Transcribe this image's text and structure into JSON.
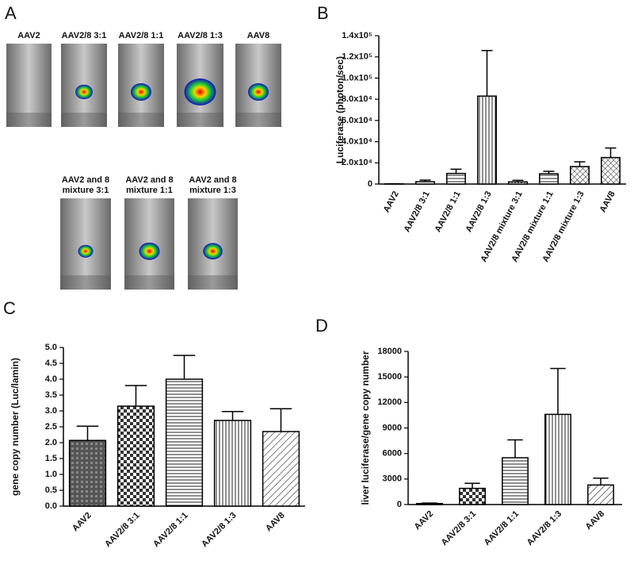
{
  "panel_labels": [
    "A",
    "B",
    "C",
    "D"
  ],
  "imaging": {
    "labels": [
      [
        "AAV2"
      ],
      [
        "AAV2/8 3:1"
      ],
      [
        "AAV2/8 1:1"
      ],
      [
        "AAV2/8 1:3"
      ],
      [
        "AAV8"
      ],
      [
        "AAV2 and 8",
        "mixture 3:1"
      ],
      [
        "AAV2 and 8",
        "mixture 1:1"
      ],
      [
        "AAV2 and 8",
        "mixture 1:3"
      ]
    ]
  },
  "chart_data": [
    {
      "type": "bar",
      "y_label": "Luciferase (photon/sec)",
      "categories": [
        "AAV2",
        "AAV2/8 3:1",
        "AAV2/8 1:1",
        "AAV2/8 1:3",
        "AAV2/8 mixture 3:1",
        "AAV2/8 mixture 1:1",
        "AAV2/8 mixture 1:3",
        "AAV8"
      ],
      "values": [
        200,
        2200,
        10000,
        83000,
        2000,
        9700,
        16500,
        25000
      ],
      "errors": [
        100,
        1500,
        4000,
        43000,
        1500,
        2300,
        4500,
        9000
      ],
      "color": "#000000",
      "ylim": [
        0,
        140000
      ],
      "yticks": [
        0,
        {
          "value": 20000,
          "label": "2.0x10⁴"
        },
        {
          "value": 40000,
          "label": "4.0x10⁴"
        },
        {
          "value": 60000,
          "label": "6.0x10⁴"
        },
        {
          "value": 80000,
          "label": "8.0x10⁴"
        },
        {
          "value": 100000,
          "label": "1.0x10⁵"
        },
        {
          "value": 120000,
          "label": "1.2x10⁵"
        },
        {
          "value": 140000,
          "label": "1.4x10⁵"
        }
      ]
    },
    {
      "type": "bar",
      "y_label": "gene copy number (Luc/lamin)",
      "categories": [
        "AAV2",
        "AAV2/8 3:1",
        "AAV2/8 1:1",
        "AAV2/8 1:3",
        "AAV8"
      ],
      "values": [
        2.07,
        3.15,
        4.0,
        2.7,
        2.35
      ],
      "errors": [
        0.45,
        0.65,
        0.75,
        0.28,
        0.72
      ],
      "color": "#000000",
      "ylim": [
        0,
        5
      ],
      "yticks": [
        {
          "value": 0,
          "label": "0.0"
        },
        0.5,
        {
          "value": 1,
          "label": "1.0"
        },
        1.5,
        {
          "value": 2,
          "label": "2.0"
        },
        2.5,
        {
          "value": 3,
          "label": "3.0"
        },
        3.5,
        {
          "value": 4,
          "label": "4.0"
        },
        4.5,
        {
          "value": 5,
          "label": "5.0"
        }
      ]
    },
    {
      "type": "bar",
      "y_label": "liver luciferase/gene copy number",
      "categories": [
        "AAV2",
        "AAV2/8 3:1",
        "AAV2/8 1:1",
        "AAV2/8 1:3",
        "AAV8"
      ],
      "values": [
        120,
        1900,
        5500,
        10600,
        2300
      ],
      "errors": [
        60,
        600,
        2100,
        5400,
        800
      ],
      "color": "#000000",
      "ylim": [
        0,
        18000
      ],
      "yticks": [
        0,
        3000,
        6000,
        9000,
        12000,
        15000,
        18000
      ]
    }
  ]
}
